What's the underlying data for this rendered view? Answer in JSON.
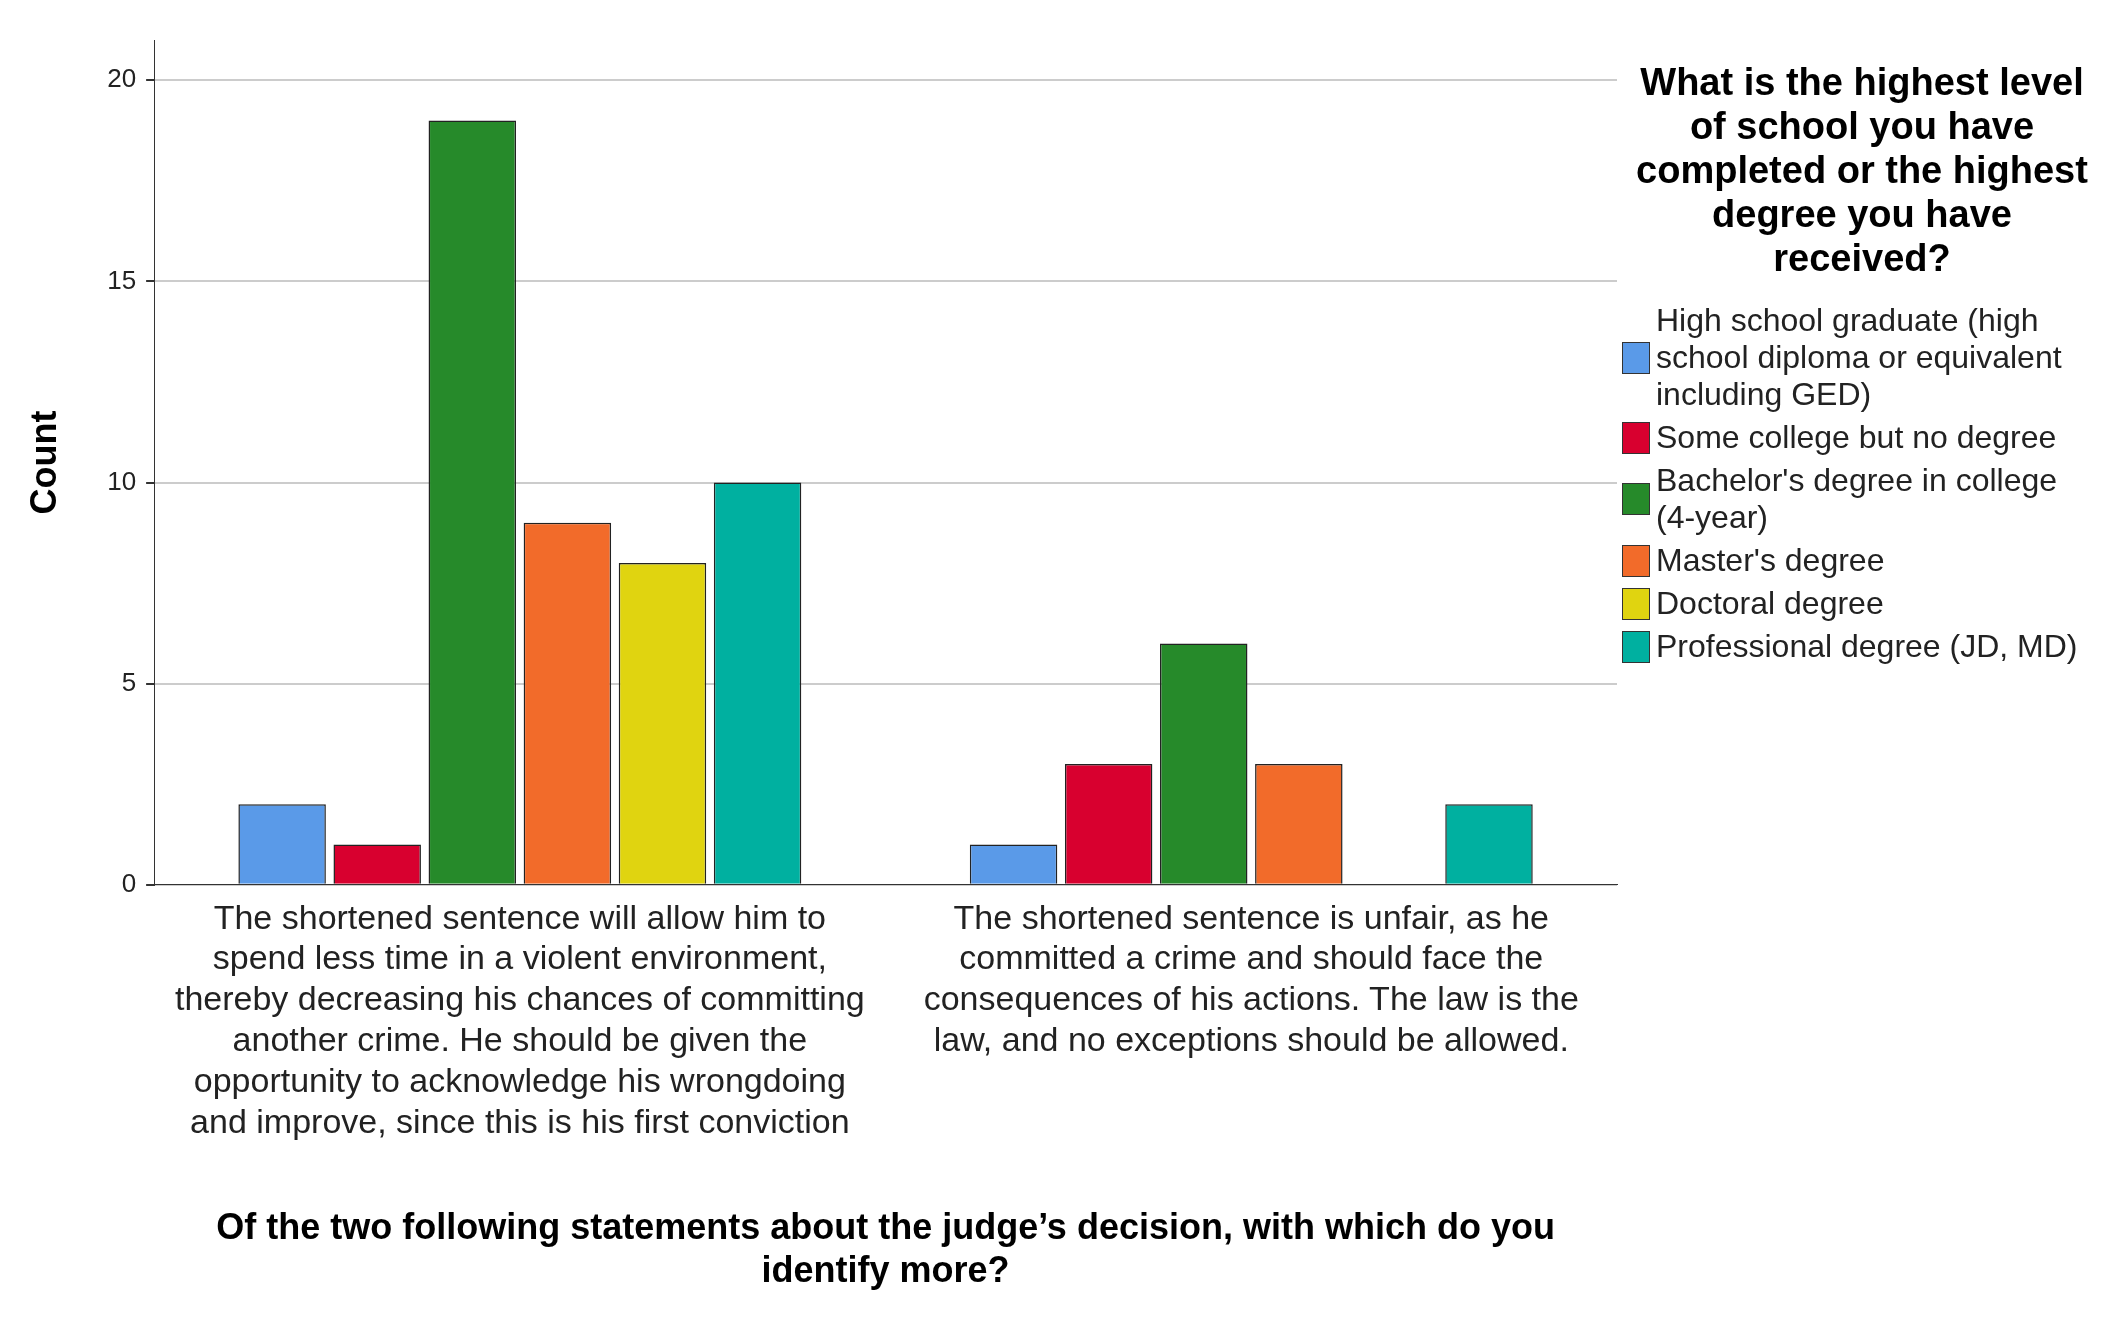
{
  "chart_data": {
    "type": "bar",
    "xlabel": "Of the two following statements about the judge’s decision, with which do you identify more?",
    "ylabel": "Count",
    "legend_title": "What is the highest level of school you have completed or the highest degree you have received?",
    "categories": [
      "The shortened sentence will allow him to spend less time in a violent environment, thereby decreasing his chances of committing another crime. He should be given the opportunity to acknowledge his wrongdoing and improve, since this is his first conviction",
      "The shortened sentence is unfair, as he committed a crime and should face the consequences of his actions. The law is the law, and no exceptions should be allowed."
    ],
    "series": [
      {
        "name": "High school graduate (high school diploma or equivalent including GED)",
        "color": "#5a9ae8",
        "values": [
          2,
          1
        ]
      },
      {
        "name": "Some college but no degree",
        "color": "#d8002f",
        "values": [
          1,
          3
        ]
      },
      {
        "name": "Bachelor's degree in college (4-year)",
        "color": "#268a2a",
        "values": [
          19,
          6
        ]
      },
      {
        "name": "Master's degree",
        "color": "#f26b2a",
        "values": [
          9,
          3
        ]
      },
      {
        "name": "Doctoral degree",
        "color": "#e0d410",
        "values": [
          8,
          0
        ]
      },
      {
        "name": "Professional degree (JD, MD)",
        "color": "#00b0a0",
        "values": [
          10,
          2
        ]
      }
    ],
    "ylim": [
      0,
      21
    ],
    "yticks": [
      0,
      5,
      10,
      15,
      20
    ],
    "grid": "y",
    "legend": "right"
  }
}
